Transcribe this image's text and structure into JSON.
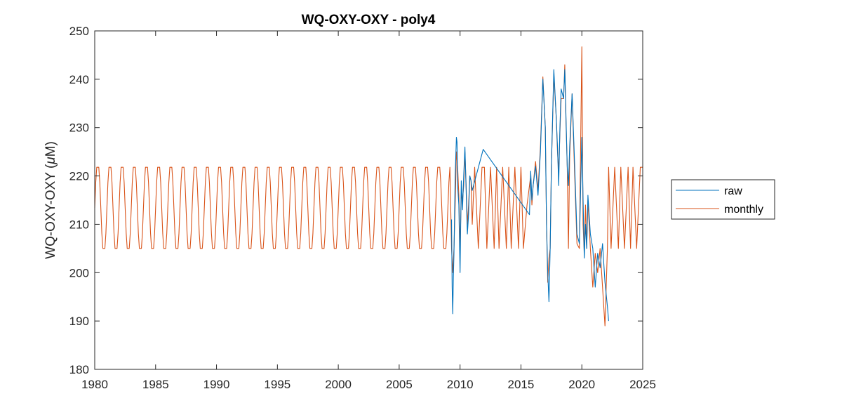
{
  "chart_data": {
    "type": "line",
    "title": "WQ-OXY-OXY - poly4",
    "xlabel": "",
    "ylabel": "WQ-OXY-OXY (",
    "ylabel_greek": "μ",
    "ylabel_unit": "M)",
    "xlim": [
      1980,
      2025
    ],
    "ylim": [
      180,
      250
    ],
    "xticks": [
      "1980",
      "1985",
      "1990",
      "1995",
      "2000",
      "2005",
      "2010",
      "2015",
      "2020",
      "2025"
    ],
    "yticks": [
      "180",
      "190",
      "200",
      "210",
      "220",
      "230",
      "240",
      "250"
    ],
    "grid": false,
    "legend_position": "outside-right",
    "series": [
      {
        "name": "raw",
        "color": "#0072BD",
        "x": [
          2009.3,
          2009.35,
          2009.4,
          2009.45,
          2009.5,
          2009.6,
          2009.7,
          2009.75,
          2009.8,
          2009.9,
          2010.0,
          2010.1,
          2010.2,
          2010.3,
          2010.4,
          2010.5,
          2010.6,
          2010.7,
          2010.8,
          2010.9,
          2011.0,
          2011.9,
          2015.7,
          2015.8,
          2015.9,
          2016.0,
          2016.2,
          2016.4,
          2016.6,
          2016.8,
          2017.0,
          2017.1,
          2017.2,
          2017.3,
          2017.4,
          2017.5,
          2017.7,
          2017.9,
          2018.0,
          2018.1,
          2018.2,
          2018.3,
          2018.5,
          2018.6,
          2018.7,
          2018.8,
          2018.9,
          2019.0,
          2019.2,
          2019.4,
          2019.6,
          2019.8,
          2020.0,
          2020.2,
          2020.3,
          2020.4,
          2020.5,
          2020.7,
          2020.9,
          2021.1,
          2021.3,
          2021.5,
          2021.7,
          2021.9,
          2022.1,
          2022.2
        ],
        "y": [
          211,
          197,
          191.5,
          199,
          204,
          220,
          228,
          227,
          218,
          214,
          200,
          219,
          213,
          220,
          226,
          217,
          208,
          212,
          220,
          219,
          217,
          225.5,
          212,
          221,
          215,
          218,
          222,
          216,
          225,
          240,
          230,
          210,
          200,
          194,
          205,
          222,
          242,
          232,
          226,
          218,
          230,
          238,
          236,
          242,
          232,
          222,
          218,
          226,
          237,
          223,
          208,
          206,
          228,
          203,
          210,
          205,
          216,
          208,
          205,
          197,
          204,
          201,
          206,
          198,
          193,
          190
        ]
      },
      {
        "name": "monthly",
        "color": "#D95319",
        "seasonal": {
          "start": 1980,
          "end": 2009.2,
          "period": 1,
          "min": 205,
          "max": 221.8
        },
        "x": [
          2009.3,
          2009.4,
          2009.5,
          2009.6,
          2009.7,
          2009.8,
          2009.9,
          2010.0,
          2010.1,
          2010.2,
          2010.3,
          2010.4,
          2010.5,
          2010.6,
          2010.7,
          2010.8,
          2010.9,
          2011.0,
          2011.2,
          2011.5,
          2011.8,
          2012.0,
          2012.2,
          2012.5,
          2012.8,
          2013.0,
          2013.2,
          2013.5,
          2013.8,
          2014.0,
          2014.2,
          2014.5,
          2014.8,
          2015.0,
          2015.2,
          2015.5,
          2015.7,
          2015.8,
          2015.9,
          2016.0,
          2016.2,
          2016.4,
          2016.6,
          2016.8,
          2017.0,
          2017.1,
          2017.2,
          2017.3,
          2017.4,
          2017.5,
          2017.7,
          2017.9,
          2018.0,
          2018.1,
          2018.2,
          2018.3,
          2018.5,
          2018.6,
          2018.7,
          2018.8,
          2018.9,
          2019.0,
          2019.2,
          2019.4,
          2019.6,
          2019.8,
          2020.0,
          2020.1,
          2020.2,
          2020.3,
          2020.4,
          2020.5,
          2020.7,
          2020.9,
          2021.1,
          2021.3,
          2021.5,
          2021.7,
          2021.9,
          2022.1,
          2022.2,
          2022.4,
          2022.7,
          2023.0,
          2023.2,
          2023.5,
          2023.8,
          2024.0,
          2024.2,
          2024.5,
          2024.8,
          2025.0
        ],
        "y": [
          205,
          200,
          205,
          214,
          225,
          222,
          216,
          205,
          216,
          215,
          218,
          225,
          218,
          210,
          214,
          220,
          219,
          210,
          221.8,
          205,
          221.8,
          221.8,
          205,
          221.8,
          205,
          221.8,
          205,
          221.8,
          205,
          221.8,
          205,
          221.8,
          205,
          221.8,
          205,
          214,
          218,
          220,
          214,
          218,
          223,
          217,
          226,
          240.5,
          230,
          210,
          198,
          203,
          205,
          222,
          241,
          232,
          225,
          221,
          229,
          236,
          236,
          243,
          231,
          222,
          205,
          224,
          237,
          221,
          206,
          205,
          246.7,
          210,
          204,
          214,
          205,
          215,
          205,
          197,
          204,
          200,
          205,
          197,
          189,
          205,
          221.8,
          205,
          221.8,
          205,
          221.8,
          205,
          221.8,
          205,
          221.8,
          205,
          221.8,
          221.8
        ]
      }
    ]
  }
}
